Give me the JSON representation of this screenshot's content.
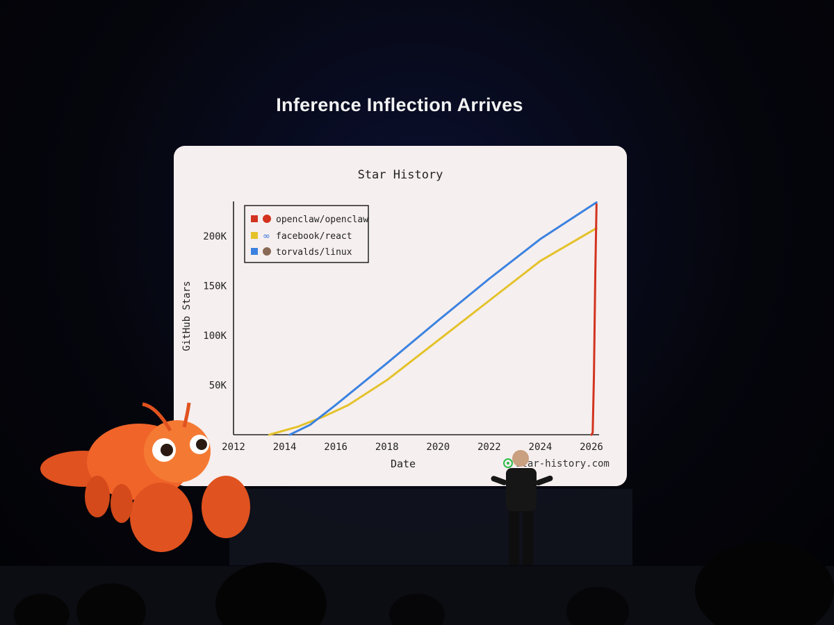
{
  "slide": {
    "title": "Inference Inflection Arrives",
    "watermark": "star-history.com"
  },
  "colors": {
    "panel": "#f6efef",
    "openclaw": "#d2331f",
    "react": "#e4c22a",
    "linux": "#3b82e0"
  },
  "chart_data": {
    "type": "line",
    "title": "Star History",
    "xlabel": "Date",
    "ylabel": "GitHub Stars",
    "xlim": [
      2012,
      2026.3
    ],
    "ylim": [
      0,
      235000
    ],
    "x_ticks": [
      "2012",
      "2014",
      "2016",
      "2018",
      "2020",
      "2022",
      "2024",
      "2026"
    ],
    "y_ticks": [
      "50K",
      "100K",
      "150K",
      "200K"
    ],
    "legend_position": "top-left",
    "series": [
      {
        "name": "openclaw/openclaw",
        "color": "#d2331f",
        "x": [
          2026.0,
          2026.05,
          2026.1,
          2026.15,
          2026.2
        ],
        "y": [
          0,
          2000,
          60000,
          160000,
          232000
        ]
      },
      {
        "name": "facebook/react",
        "color": "#e4c22a",
        "x": [
          2013.4,
          2014.5,
          2015.5,
          2016.5,
          2018,
          2020,
          2022,
          2024,
          2026.2
        ],
        "y": [
          0,
          8000,
          18000,
          30000,
          55000,
          95000,
          135000,
          175000,
          208000
        ]
      },
      {
        "name": "torvalds/linux",
        "color": "#3b82e0",
        "x": [
          2014.2,
          2015,
          2016,
          2018,
          2020,
          2022,
          2024,
          2026.2
        ],
        "y": [
          0,
          10000,
          30000,
          72000,
          115000,
          157000,
          197000,
          234000
        ]
      }
    ]
  }
}
